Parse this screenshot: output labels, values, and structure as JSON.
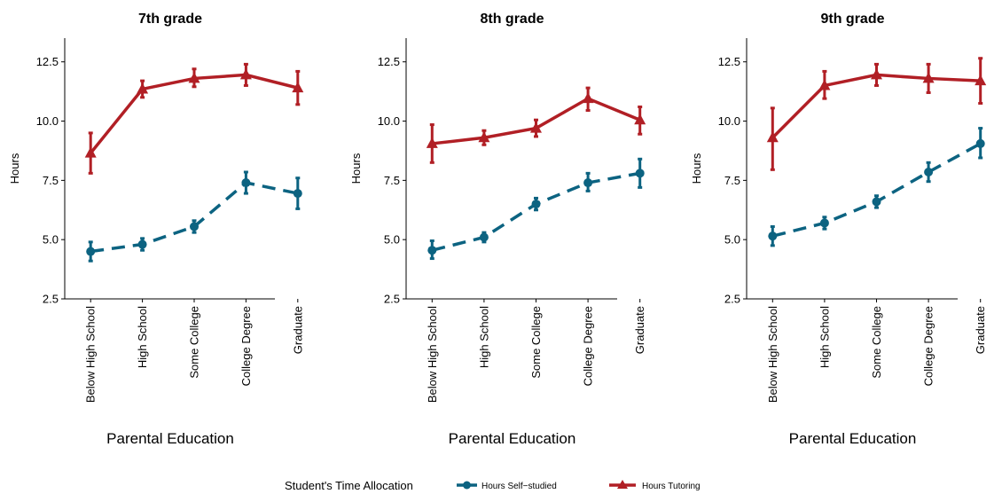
{
  "chart_data": {
    "type": "line",
    "categories": [
      "Below High School",
      "High School",
      "Some College",
      "College Degree",
      "Graduate"
    ],
    "xlabel": "Parental Education",
    "ylabel": "Hours",
    "ylim": [
      2.5,
      13.5
    ],
    "yticks": [
      2.5,
      5.0,
      7.5,
      10.0,
      12.5
    ],
    "ytick_labels": [
      "2.5",
      "5.0",
      "7.5",
      "10.0",
      "12.5"
    ],
    "grid": false,
    "legend": {
      "title": "Student's Time Allocation",
      "position": "bottom",
      "entries": [
        "Hours Self−studied",
        "Hours Tutoring"
      ]
    },
    "colors": {
      "self_studied": "#0c6381",
      "tutoring": "#b11f25"
    },
    "panels": [
      {
        "title": "7th grade",
        "series": [
          {
            "name": "Hours Self−studied",
            "values": [
              4.5,
              4.8,
              5.55,
              7.4,
              6.95
            ],
            "lower": [
              4.1,
              4.55,
              5.3,
              6.95,
              6.3
            ],
            "upper": [
              4.9,
              5.05,
              5.8,
              7.85,
              7.6
            ]
          },
          {
            "name": "Hours Tutoring",
            "values": [
              8.65,
              11.35,
              11.8,
              11.95,
              11.4
            ],
            "lower": [
              7.8,
              11.0,
              11.45,
              11.5,
              10.7
            ],
            "upper": [
              9.5,
              11.7,
              12.2,
              12.4,
              12.1
            ]
          }
        ]
      },
      {
        "title": "8th grade",
        "series": [
          {
            "name": "Hours Self−studied",
            "values": [
              4.55,
              5.1,
              6.5,
              7.4,
              7.8
            ],
            "lower": [
              4.2,
              4.9,
              6.25,
              7.05,
              7.2
            ],
            "upper": [
              4.95,
              5.3,
              6.75,
              7.8,
              8.4
            ]
          },
          {
            "name": "Hours Tutoring",
            "values": [
              9.05,
              9.3,
              9.7,
              10.95,
              10.05
            ],
            "lower": [
              8.25,
              9.0,
              9.35,
              10.45,
              9.45
            ],
            "upper": [
              9.85,
              9.6,
              10.05,
              11.4,
              10.6
            ]
          }
        ]
      },
      {
        "title": "9th grade",
        "series": [
          {
            "name": "Hours Self−studied",
            "values": [
              5.15,
              5.7,
              6.6,
              7.85,
              9.05
            ],
            "lower": [
              4.75,
              5.45,
              6.35,
              7.45,
              8.45
            ],
            "upper": [
              5.55,
              5.95,
              6.85,
              8.25,
              9.7
            ]
          },
          {
            "name": "Hours Tutoring",
            "values": [
              9.3,
              11.5,
              11.95,
              11.8,
              11.7
            ],
            "lower": [
              7.95,
              10.95,
              11.5,
              11.2,
              10.75
            ],
            "upper": [
              10.55,
              12.1,
              12.4,
              12.4,
              12.65
            ]
          }
        ]
      }
    ]
  }
}
